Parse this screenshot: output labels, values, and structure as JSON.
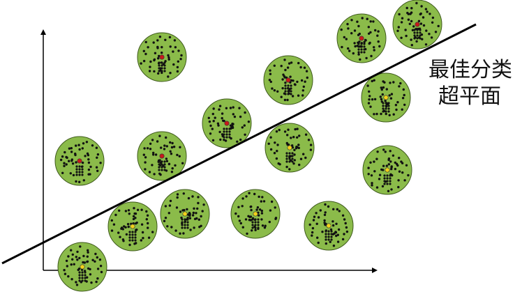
{
  "diagram": {
    "label_lines": [
      "最佳分类",
      "超平面"
    ],
    "colors": {
      "circle_fill": "#8bbb4a",
      "circle_stroke": "#3f5a1d",
      "dot": "#111111",
      "class_a_center": "#c8191c",
      "class_b_center": "#f2d21b",
      "axis": "#000000",
      "hyperplane": "#000000"
    },
    "clusters": [
      {
        "class": "a"
      },
      {
        "class": "a"
      },
      {
        "class": "a"
      },
      {
        "class": "a"
      },
      {
        "class": "a"
      },
      {
        "class": "a"
      },
      {
        "class": "a"
      },
      {
        "class": "b"
      },
      {
        "class": "b"
      },
      {
        "class": "b"
      },
      {
        "class": "b"
      },
      {
        "class": "b"
      },
      {
        "class": "b"
      },
      {
        "class": "b"
      },
      {
        "class": "b"
      },
      {
        "class": "b"
      }
    ]
  }
}
